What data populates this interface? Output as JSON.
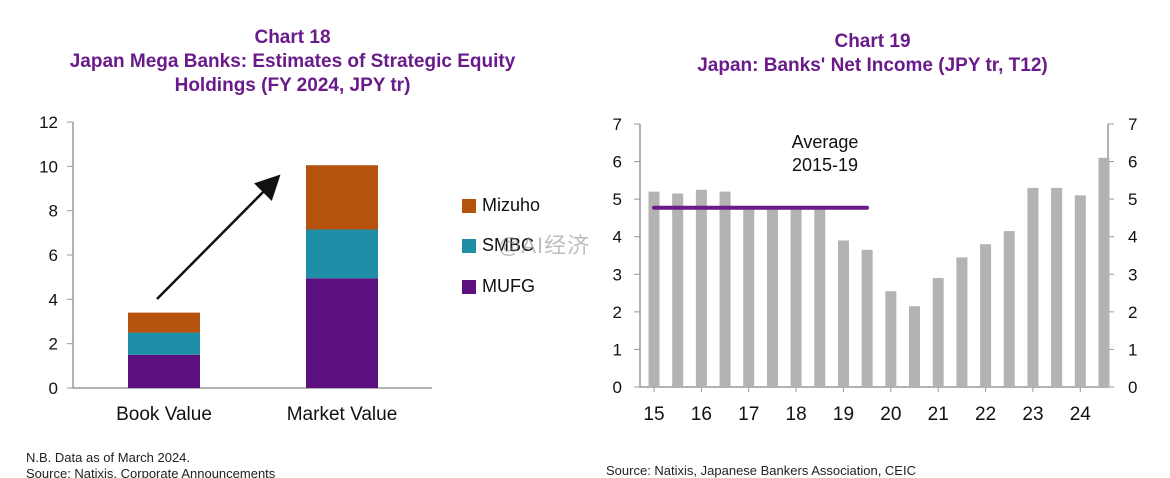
{
  "chart18": {
    "title_line1": "Chart 18",
    "title_line2": "Japan Mega Banks: Estimates of Strategic Equity",
    "title_line3": "Holdings (FY 2024, JPY tr)",
    "note": "N.B. Data as of March 2024.",
    "source": "Source: Natixis, Corporate Announcements"
  },
  "chart19": {
    "title_line1": "Chart 19",
    "title_line2": "Japan: Banks' Net Income (JPY tr, T12)",
    "annotation_line1": "Average",
    "annotation_line2": "2015-19",
    "source": "Source: Natixis, Japanese Bankers Association, CEIC"
  },
  "watermark": "@AI经济",
  "colors": {
    "mizuho": "#b5520e",
    "smbc": "#1e8fa6",
    "mufg": "#5c0f7f",
    "bar": "#b3b3b3",
    "avg": "#6a1b8a",
    "title": "#6a1b8a"
  },
  "chart_data": [
    {
      "type": "bar",
      "stacked": true,
      "categories": [
        "Book Value",
        "Market Value"
      ],
      "series": [
        {
          "name": "MUFG",
          "values": [
            1.5,
            4.95
          ]
        },
        {
          "name": "SMBC",
          "values": [
            1.0,
            2.2
          ]
        },
        {
          "name": "Mizuho",
          "values": [
            0.9,
            2.9
          ]
        }
      ],
      "yticks": [
        "0",
        "2",
        "4",
        "6",
        "8",
        "10",
        "12"
      ],
      "ylim": [
        0,
        12
      ],
      "legend": [
        "Mizuho",
        "SMBC",
        "MUFG"
      ],
      "legend_position": "right",
      "arrow": "from Book Value to Market Value"
    },
    {
      "type": "bar",
      "x_tick_labels": [
        "15",
        "16",
        "17",
        "18",
        "19",
        "20",
        "21",
        "22",
        "23",
        "24"
      ],
      "values": [
        5.2,
        5.15,
        5.25,
        5.2,
        4.75,
        4.75,
        4.8,
        4.8,
        3.9,
        3.65,
        2.55,
        2.15,
        2.9,
        3.45,
        3.8,
        4.15,
        5.3,
        5.3,
        5.1,
        6.1
      ],
      "average_2015_19": 4.77,
      "yticks": [
        "0",
        "1",
        "2",
        "3",
        "4",
        "5",
        "6",
        "7"
      ],
      "ylim": [
        0,
        7
      ],
      "grid": false
    }
  ]
}
